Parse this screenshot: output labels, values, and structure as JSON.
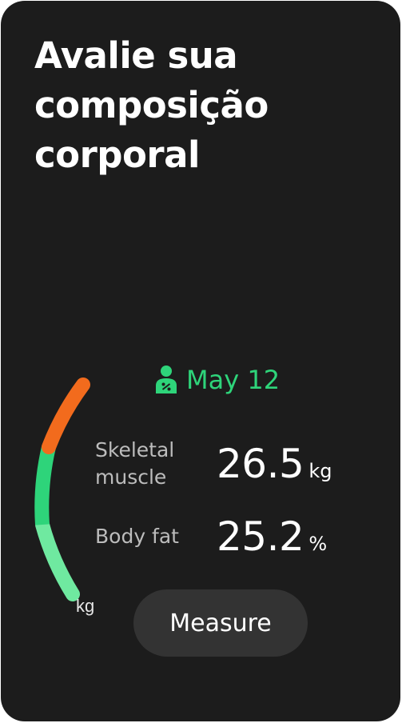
{
  "headline": {
    "lines": [
      "Avalie sua",
      "composição",
      "corporal"
    ]
  },
  "gauge": {
    "unit": "kg",
    "segment_colors": [
      "#f26b1d",
      "#2ed47a",
      "#6fe9a0"
    ]
  },
  "measurement": {
    "date": "May 12",
    "icon": "person-body-composition-icon",
    "accent_color": "#2ed47a",
    "skeletal_muscle": {
      "label_line1": "Skeletal",
      "label_line2": "muscle",
      "value": "26.5",
      "unit": "kg"
    },
    "body_fat": {
      "label": "Body fat",
      "value": "25.2",
      "unit": "%"
    }
  },
  "actions": {
    "measure_label": "Measure"
  }
}
